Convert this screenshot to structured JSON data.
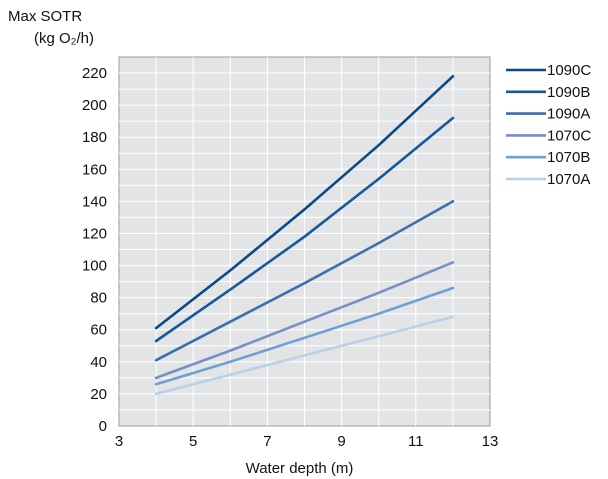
{
  "chart_data": {
    "type": "line",
    "ylabel": "Max SOTR",
    "ylabel_unit": "(kg O₂/h)",
    "xlabel": "Water depth (m)",
    "xlim": [
      3,
      13
    ],
    "ylim": [
      0,
      230
    ],
    "xticks": [
      3,
      5,
      7,
      9,
      11,
      13
    ],
    "yticks": [
      0,
      20,
      40,
      60,
      80,
      100,
      120,
      140,
      160,
      180,
      200,
      220
    ],
    "grid": true,
    "legend_position": "right",
    "x": [
      4,
      6,
      8,
      10,
      12
    ],
    "series": [
      {
        "name": "1090C",
        "color": "#0b4a86",
        "values": [
          61,
          97,
          135,
          175,
          218
        ]
      },
      {
        "name": "1090B",
        "color": "#15599a",
        "values": [
          53,
          85,
          118,
          154,
          192
        ]
      },
      {
        "name": "1090A",
        "color": "#3c6fae",
        "values": [
          41,
          65,
          89,
          114,
          140
        ]
      },
      {
        "name": "1070C",
        "color": "#7490c6",
        "values": [
          30,
          47,
          65,
          83,
          102
        ]
      },
      {
        "name": "1070B",
        "color": "#6fa0d2",
        "values": [
          26,
          40,
          55,
          70,
          86
        ]
      },
      {
        "name": "1070A",
        "color": "#b8d0ea",
        "values": [
          20,
          32,
          44,
          56,
          68
        ]
      }
    ]
  }
}
